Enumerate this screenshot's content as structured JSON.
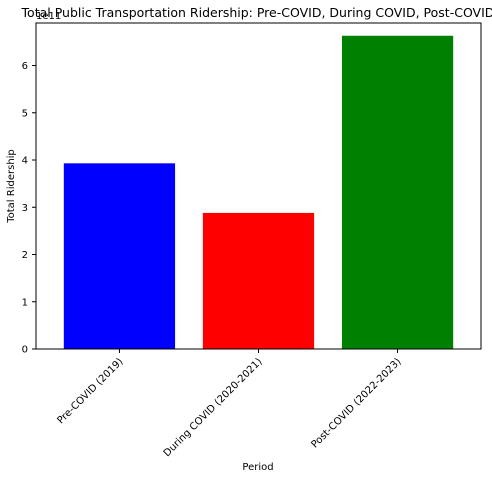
{
  "chart_data": {
    "type": "bar",
    "title": "Total Public Transportation Ridership: Pre-COVID, During COVID, Post-COVID",
    "xlabel": "Period",
    "ylabel": "Total Ridership",
    "y_offset_label": "1e11",
    "categories": [
      "Pre-COVID (2019)",
      "During COVID (2020-2021)",
      "Post-COVID (2022-2023)"
    ],
    "values": [
      3.93,
      2.88,
      6.63
    ],
    "colors": [
      "#0000ff",
      "#ff0000",
      "#008000"
    ],
    "ylim": [
      0,
      6.9
    ],
    "yticks": [
      0,
      1,
      2,
      3,
      4,
      5,
      6
    ],
    "grid": false,
    "legend": "none"
  }
}
